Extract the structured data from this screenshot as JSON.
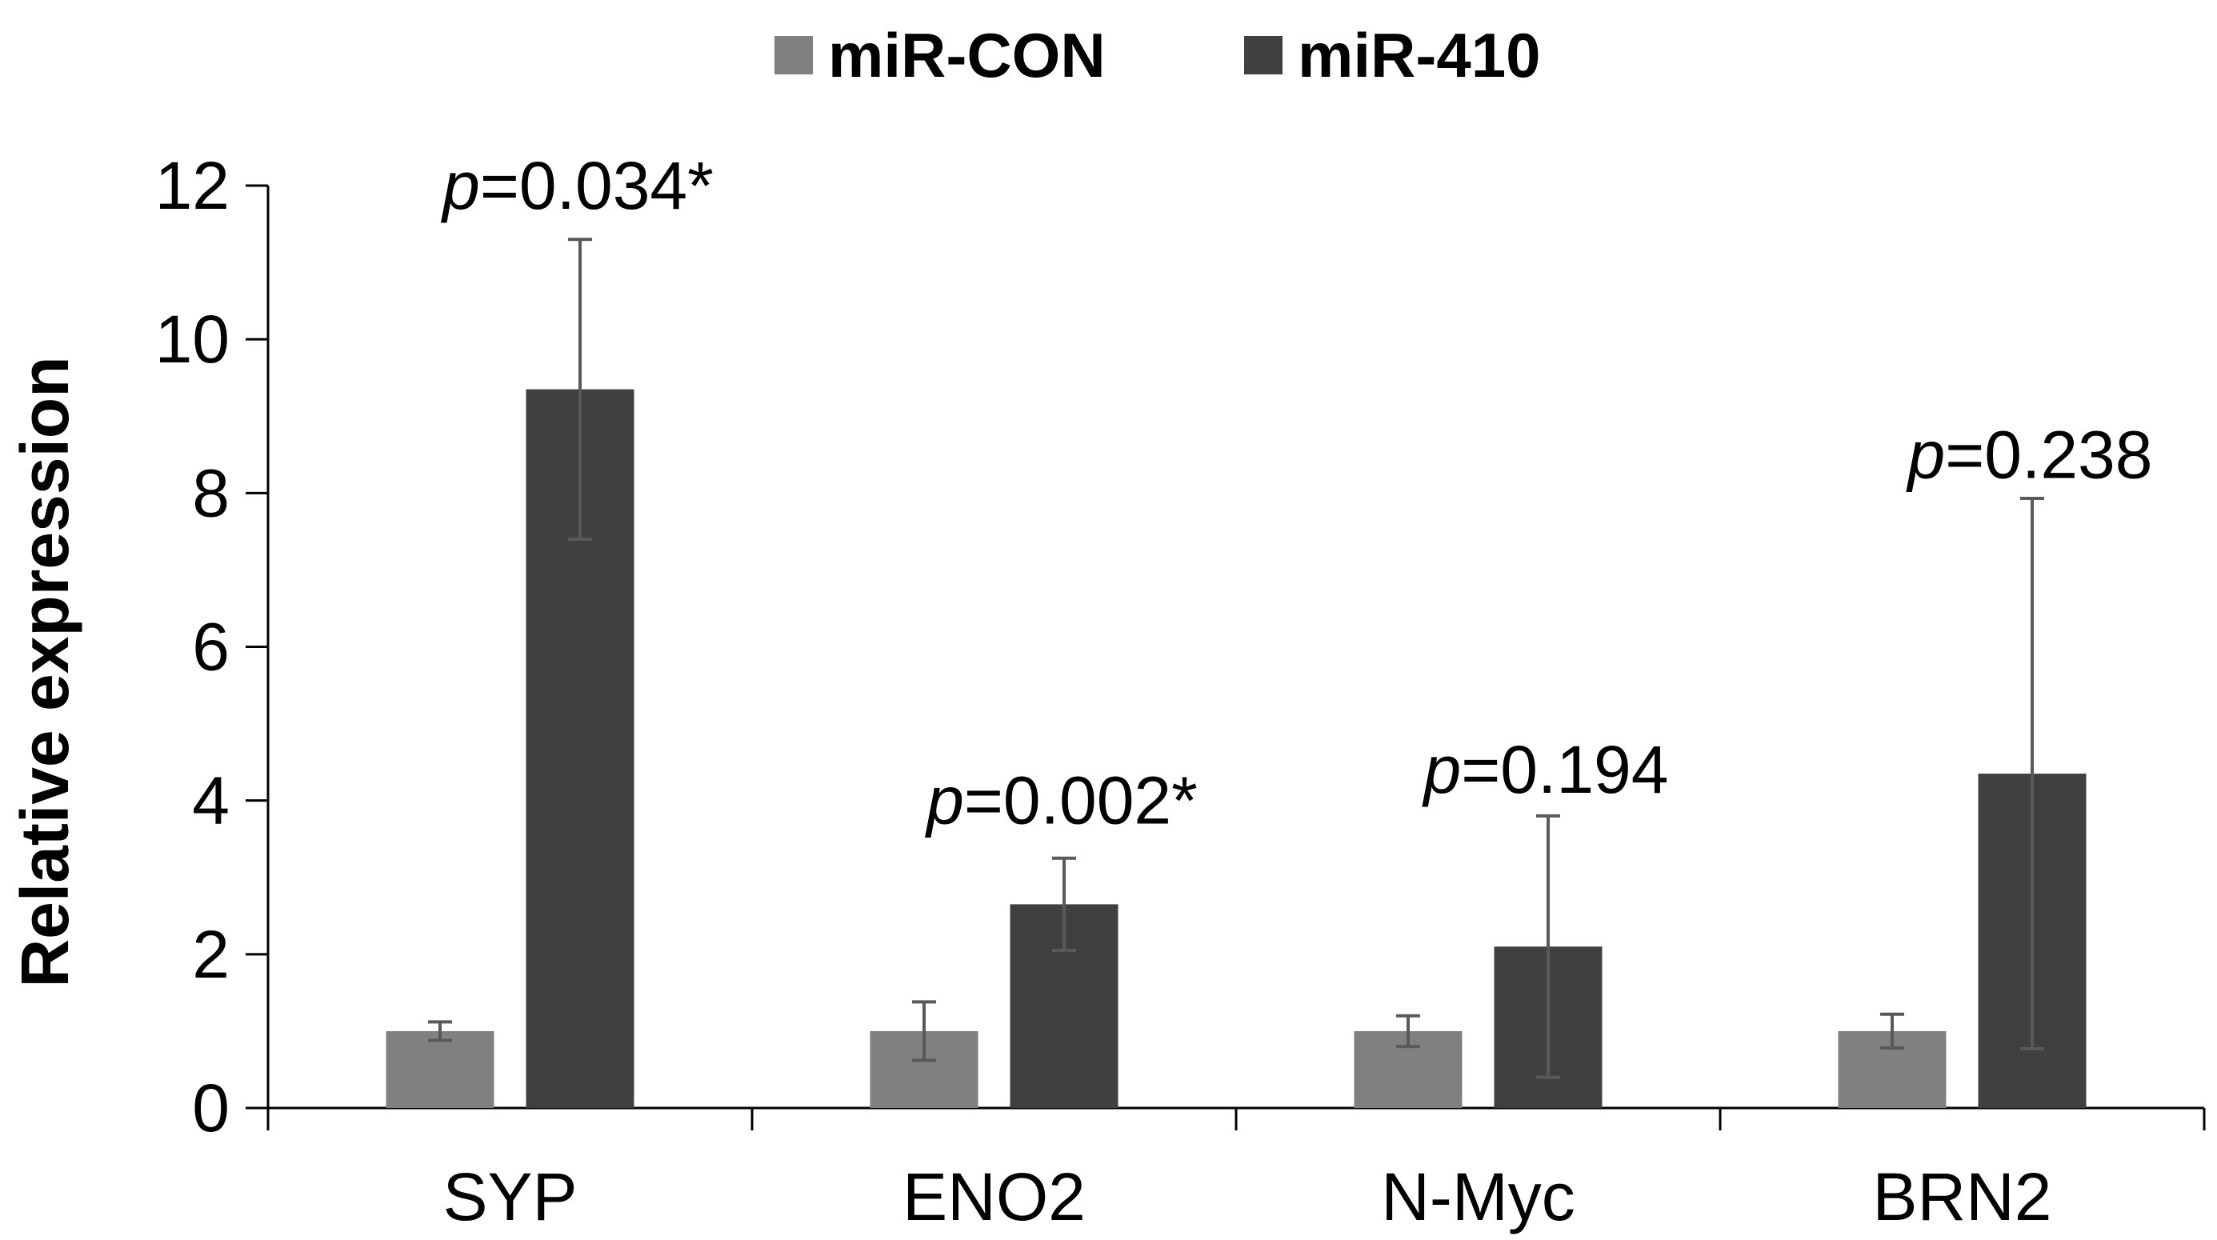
{
  "chart_data": {
    "type": "bar",
    "title": "",
    "xlabel": "",
    "ylabel": "Relative expression",
    "ylim": [
      0,
      12
    ],
    "yticks": [
      0,
      2,
      4,
      6,
      8,
      10,
      12
    ],
    "categories": [
      "SYP",
      "ENO2",
      "N-Myc",
      "BRN2"
    ],
    "legend_position": "top-center",
    "grid": false,
    "series": [
      {
        "name": "miR-CON",
        "color": "#808080",
        "values": [
          1.0,
          1.0,
          1.0,
          1.0
        ],
        "errors": [
          0.12,
          0.38,
          0.2,
          0.22
        ]
      },
      {
        "name": "miR-410",
        "color": "#404040",
        "values": [
          9.35,
          2.65,
          2.1,
          4.35
        ],
        "errors": [
          1.95,
          0.6,
          1.7,
          3.58
        ]
      }
    ],
    "annotations": [
      {
        "prefix": "p",
        "text": "=0.034*",
        "category": "SYP",
        "y": 12.0
      },
      {
        "prefix": "p",
        "text": "=0.002*",
        "category": "ENO2",
        "y": 4.0
      },
      {
        "prefix": "p",
        "text": "=0.194",
        "category": "N-Myc",
        "y": 4.4
      },
      {
        "prefix": "p",
        "text": "=0.238",
        "category": "BRN2",
        "y": 8.5
      }
    ]
  }
}
